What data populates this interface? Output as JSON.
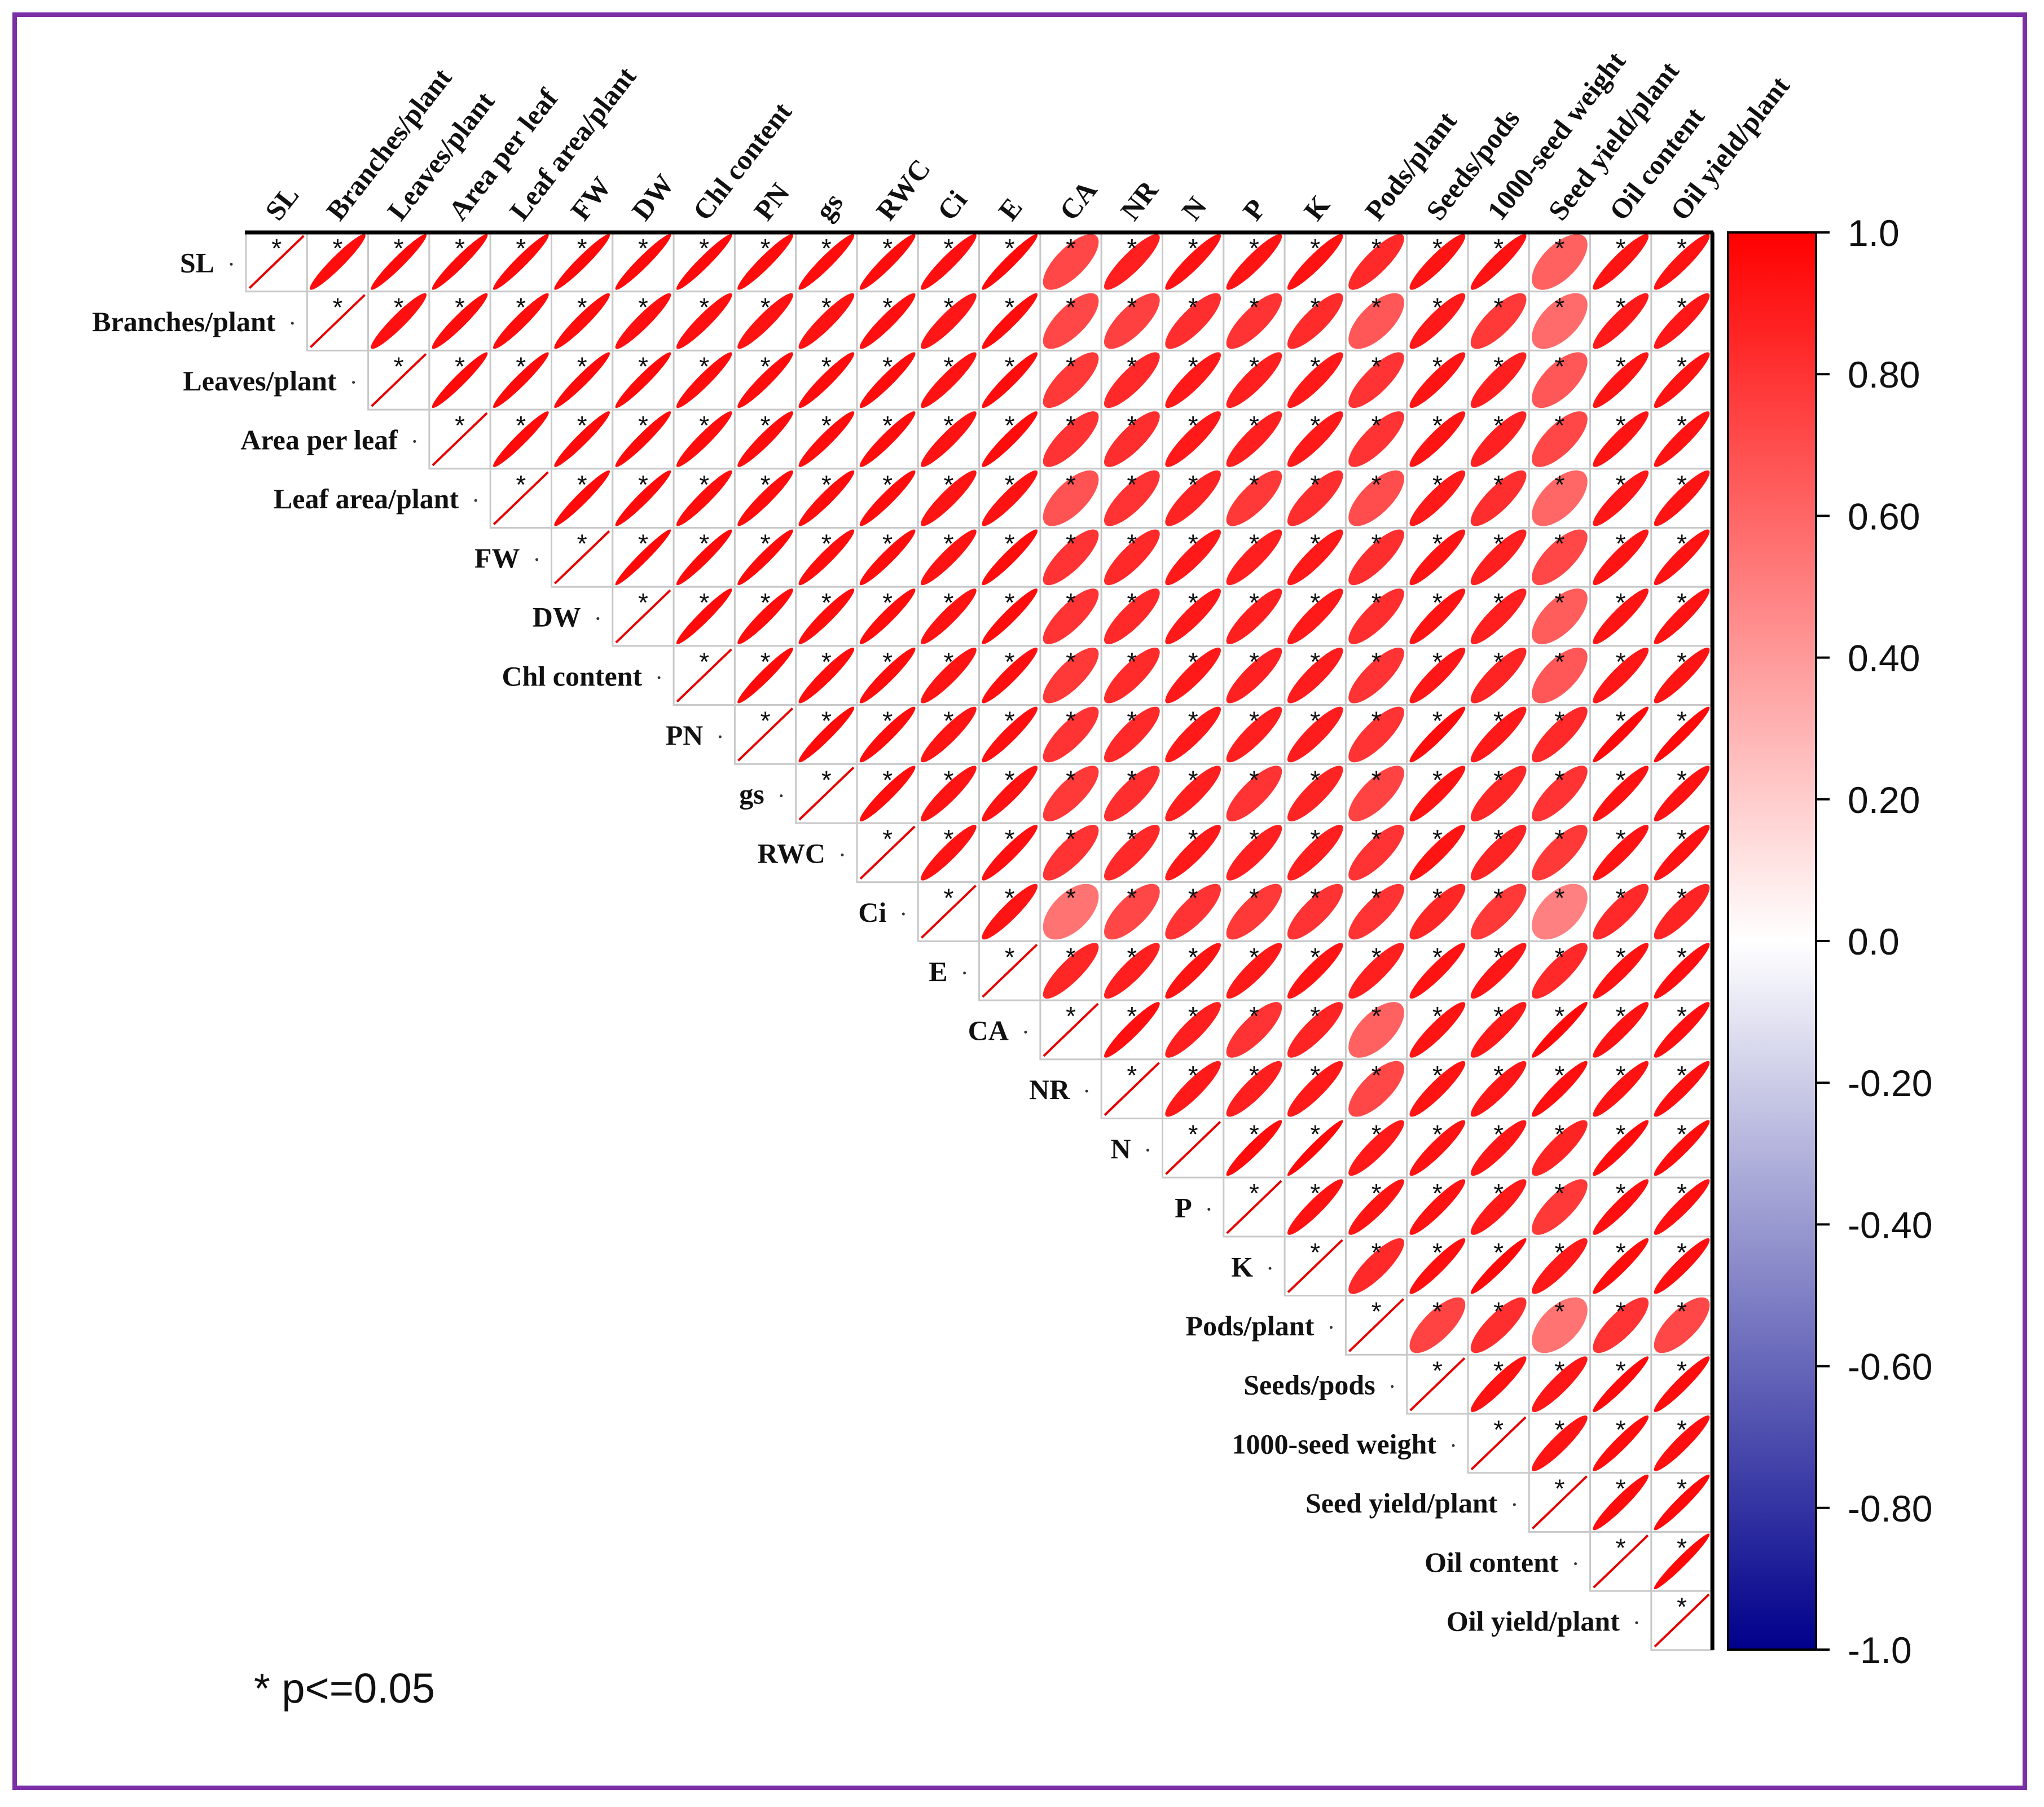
{
  "chart_data": {
    "type": "heatmap",
    "subtype": "correlation-ellipse-upper-triangle",
    "variables": [
      "SL",
      "Branches/plant",
      "Leaves/plant",
      "Area per leaf",
      "Leaf area/plant",
      "FW",
      "DW",
      "Chl content",
      "PN",
      "gs",
      "RWC",
      "Ci",
      "E",
      "CA",
      "NR",
      "N",
      "P",
      "K",
      "Pods/plant",
      "Seeds/pods",
      "1000-seed weight",
      "Seed yield/plant",
      "Oil content",
      "Oil yield/plant"
    ],
    "row_labels": [
      "SL",
      "Branches/plant",
      "Leaves/plant",
      "Area per leaf",
      "Leaf area/plant",
      "FW",
      "DW",
      "Chl content",
      "PN",
      "gs",
      "RWC",
      "Ci",
      "E",
      "CA",
      "NR",
      "N",
      "P",
      "K",
      "Pods/plant",
      "Seeds/pods",
      "1000-seed weight",
      "Seed yield/plant",
      "Oil content",
      "Oil yield/plant"
    ],
    "correlation_matrix": [
      [
        1.0,
        0.95,
        0.96,
        0.96,
        0.96,
        0.96,
        0.96,
        0.96,
        0.95,
        0.95,
        0.95,
        0.94,
        0.96,
        0.72,
        0.88,
        0.93,
        0.92,
        0.93,
        0.84,
        0.92,
        0.93,
        0.62,
        0.92,
        0.93
      ],
      [
        null,
        1.0,
        0.94,
        0.95,
        0.95,
        0.95,
        0.94,
        0.94,
        0.93,
        0.93,
        0.94,
        0.91,
        0.95,
        0.72,
        0.75,
        0.82,
        0.8,
        0.83,
        0.66,
        0.9,
        0.78,
        0.58,
        0.9,
        0.91
      ],
      [
        null,
        null,
        1.0,
        0.96,
        0.96,
        0.96,
        0.96,
        0.95,
        0.95,
        0.95,
        0.95,
        0.93,
        0.95,
        0.78,
        0.84,
        0.9,
        0.88,
        0.9,
        0.8,
        0.92,
        0.88,
        0.66,
        0.92,
        0.93
      ],
      [
        null,
        null,
        null,
        1.0,
        0.96,
        0.96,
        0.96,
        0.95,
        0.95,
        0.95,
        0.95,
        0.93,
        0.95,
        0.8,
        0.82,
        0.9,
        0.88,
        0.9,
        0.8,
        0.92,
        0.87,
        0.72,
        0.92,
        0.93
      ],
      [
        null,
        null,
        null,
        null,
        1.0,
        0.96,
        0.96,
        0.95,
        0.95,
        0.95,
        0.95,
        0.92,
        0.93,
        0.68,
        0.8,
        0.86,
        0.78,
        0.82,
        0.7,
        0.9,
        0.82,
        0.6,
        0.91,
        0.92
      ],
      [
        null,
        null,
        null,
        null,
        null,
        1.0,
        0.97,
        0.96,
        0.96,
        0.95,
        0.95,
        0.93,
        0.95,
        0.8,
        0.84,
        0.9,
        0.88,
        0.9,
        0.82,
        0.92,
        0.88,
        0.72,
        0.92,
        0.93
      ],
      [
        null,
        null,
        null,
        null,
        null,
        null,
        1.0,
        0.96,
        0.95,
        0.95,
        0.95,
        0.93,
        0.95,
        0.8,
        0.84,
        0.9,
        0.88,
        0.9,
        0.82,
        0.92,
        0.88,
        0.64,
        0.92,
        0.93
      ],
      [
        null,
        null,
        null,
        null,
        null,
        null,
        null,
        1.0,
        0.96,
        0.95,
        0.95,
        0.92,
        0.94,
        0.78,
        0.83,
        0.9,
        0.87,
        0.89,
        0.8,
        0.91,
        0.86,
        0.66,
        0.91,
        0.92
      ],
      [
        null,
        null,
        null,
        null,
        null,
        null,
        null,
        null,
        1.0,
        0.96,
        0.95,
        0.92,
        0.94,
        0.8,
        0.84,
        0.9,
        0.88,
        0.89,
        0.8,
        0.95,
        0.9,
        0.84,
        0.96,
        0.96
      ],
      [
        null,
        null,
        null,
        null,
        null,
        null,
        null,
        null,
        null,
        1.0,
        0.95,
        0.92,
        0.93,
        0.78,
        0.82,
        0.88,
        0.8,
        0.86,
        0.74,
        0.92,
        0.85,
        0.8,
        0.93,
        0.93
      ],
      [
        null,
        null,
        null,
        null,
        null,
        null,
        null,
        null,
        null,
        null,
        1.0,
        0.93,
        0.94,
        0.8,
        0.84,
        0.9,
        0.87,
        0.88,
        0.8,
        0.92,
        0.86,
        0.78,
        0.92,
        0.93
      ],
      [
        null,
        null,
        null,
        null,
        null,
        null,
        null,
        null,
        null,
        null,
        null,
        1.0,
        0.92,
        0.55,
        0.72,
        0.8,
        0.78,
        0.8,
        0.8,
        0.85,
        0.78,
        0.5,
        0.84,
        0.86
      ],
      [
        null,
        null,
        null,
        null,
        null,
        null,
        null,
        null,
        null,
        null,
        null,
        null,
        1.0,
        0.85,
        0.88,
        0.92,
        0.9,
        0.92,
        0.88,
        0.93,
        0.91,
        0.84,
        0.93,
        0.94
      ],
      [
        null,
        null,
        null,
        null,
        null,
        null,
        null,
        null,
        null,
        null,
        null,
        null,
        null,
        1.0,
        0.94,
        0.88,
        0.8,
        0.86,
        0.62,
        0.92,
        0.9,
        0.96,
        0.93,
        0.94
      ],
      [
        null,
        null,
        null,
        null,
        null,
        null,
        null,
        null,
        null,
        null,
        null,
        null,
        null,
        null,
        1.0,
        0.9,
        0.88,
        0.9,
        0.72,
        0.92,
        0.91,
        0.94,
        0.93,
        0.94
      ],
      [
        null,
        null,
        null,
        null,
        null,
        null,
        null,
        null,
        null,
        null,
        null,
        null,
        null,
        null,
        null,
        1.0,
        0.95,
        0.97,
        0.9,
        0.93,
        0.91,
        0.86,
        0.95,
        0.95
      ],
      [
        null,
        null,
        null,
        null,
        null,
        null,
        null,
        null,
        null,
        null,
        null,
        null,
        null,
        null,
        null,
        null,
        1.0,
        0.93,
        0.92,
        0.93,
        0.9,
        0.78,
        0.94,
        0.94
      ],
      [
        null,
        null,
        null,
        null,
        null,
        null,
        null,
        null,
        null,
        null,
        null,
        null,
        null,
        null,
        null,
        null,
        null,
        1.0,
        0.84,
        0.94,
        0.96,
        0.9,
        0.95,
        0.94
      ],
      [
        null,
        null,
        null,
        null,
        null,
        null,
        null,
        null,
        null,
        null,
        null,
        null,
        null,
        null,
        null,
        null,
        null,
        null,
        1.0,
        0.74,
        0.82,
        0.55,
        0.8,
        0.72
      ],
      [
        null,
        null,
        null,
        null,
        null,
        null,
        null,
        null,
        null,
        null,
        null,
        null,
        null,
        null,
        null,
        null,
        null,
        null,
        null,
        1.0,
        0.93,
        0.91,
        0.96,
        0.95
      ],
      [
        null,
        null,
        null,
        null,
        null,
        null,
        null,
        null,
        null,
        null,
        null,
        null,
        null,
        null,
        null,
        null,
        null,
        null,
        null,
        null,
        1.0,
        0.92,
        0.95,
        0.94
      ],
      [
        null,
        null,
        null,
        null,
        null,
        null,
        null,
        null,
        null,
        null,
        null,
        null,
        null,
        null,
        null,
        null,
        null,
        null,
        null,
        null,
        null,
        1.0,
        0.95,
        0.96
      ],
      [
        null,
        null,
        null,
        null,
        null,
        null,
        null,
        null,
        null,
        null,
        null,
        null,
        null,
        null,
        null,
        null,
        null,
        null,
        null,
        null,
        null,
        null,
        1.0,
        0.97
      ],
      [
        null,
        null,
        null,
        null,
        null,
        null,
        null,
        null,
        null,
        null,
        null,
        null,
        null,
        null,
        null,
        null,
        null,
        null,
        null,
        null,
        null,
        null,
        null,
        1.0
      ]
    ],
    "significance_marker": "*",
    "all_significant": true,
    "colorbar": {
      "ticks": [
        "1.0",
        "0.80",
        "0.60",
        "0.40",
        "0.20",
        "0.0",
        "-0.20",
        "-0.40",
        "-0.60",
        "-0.80",
        "-1.0"
      ],
      "tick_values": [
        1.0,
        0.8,
        0.6,
        0.4,
        0.2,
        0.0,
        -0.2,
        -0.4,
        -0.6,
        -0.8,
        -1.0
      ],
      "range": [
        -1.0,
        1.0
      ],
      "colors": {
        "positive": "#ff0000",
        "zero": "#ffffff",
        "negative": "#00008b"
      }
    },
    "footnote": "* p<=0.05"
  },
  "colors": {
    "frame": "#7b2fa6",
    "grid": "#cccccc",
    "axis": "#000000"
  }
}
